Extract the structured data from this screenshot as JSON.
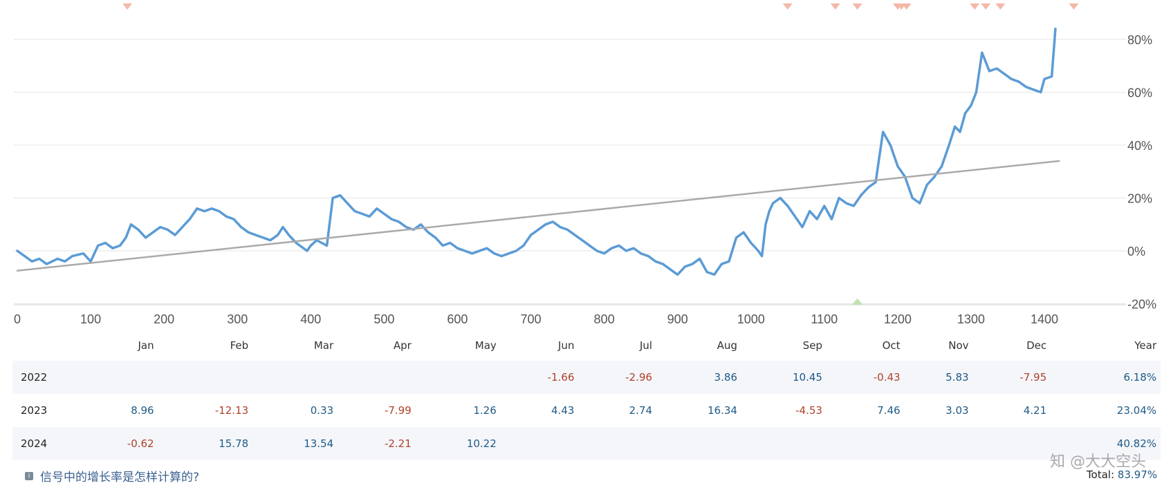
{
  "chart_data": {
    "type": "line",
    "x_ticks": [
      "0",
      "100",
      "200",
      "300",
      "400",
      "500",
      "600",
      "700",
      "800",
      "900",
      "1000",
      "1100",
      "1200",
      "1300",
      "1400"
    ],
    "y_ticks": [
      "80%",
      "60%",
      "40%",
      "20%",
      "0%",
      "-20%"
    ],
    "xlim": [
      0,
      1430
    ],
    "ylim": [
      -20,
      90
    ],
    "series": [
      {
        "color": "#5b9bd5",
        "points": [
          [
            0,
            0
          ],
          [
            10,
            -2
          ],
          [
            20,
            -4
          ],
          [
            30,
            -3
          ],
          [
            40,
            -5
          ],
          [
            55,
            -3
          ],
          [
            65,
            -4
          ],
          [
            75,
            -2
          ],
          [
            90,
            -1
          ],
          [
            100,
            -4
          ],
          [
            110,
            2
          ],
          [
            120,
            3
          ],
          [
            130,
            1
          ],
          [
            140,
            2
          ],
          [
            148,
            5
          ],
          [
            155,
            10
          ],
          [
            165,
            8
          ],
          [
            175,
            5
          ],
          [
            185,
            7
          ],
          [
            195,
            9
          ],
          [
            205,
            8
          ],
          [
            215,
            6
          ],
          [
            225,
            9
          ],
          [
            235,
            12
          ],
          [
            245,
            16
          ],
          [
            255,
            15
          ],
          [
            265,
            16
          ],
          [
            275,
            15
          ],
          [
            285,
            13
          ],
          [
            295,
            12
          ],
          [
            305,
            9
          ],
          [
            315,
            7
          ],
          [
            325,
            6
          ],
          [
            335,
            5
          ],
          [
            345,
            4
          ],
          [
            355,
            6
          ],
          [
            362,
            9
          ],
          [
            370,
            6
          ],
          [
            380,
            3
          ],
          [
            390,
            1
          ],
          [
            395,
            0
          ],
          [
            400,
            2
          ],
          [
            408,
            4
          ],
          [
            415,
            3
          ],
          [
            422,
            2
          ],
          [
            430,
            20
          ],
          [
            440,
            21
          ],
          [
            450,
            18
          ],
          [
            460,
            15
          ],
          [
            470,
            14
          ],
          [
            480,
            13
          ],
          [
            490,
            16
          ],
          [
            500,
            14
          ],
          [
            510,
            12
          ],
          [
            520,
            11
          ],
          [
            530,
            9
          ],
          [
            540,
            8
          ],
          [
            550,
            10
          ],
          [
            560,
            7
          ],
          [
            570,
            5
          ],
          [
            580,
            2
          ],
          [
            590,
            3
          ],
          [
            600,
            1
          ],
          [
            610,
            0
          ],
          [
            620,
            -1
          ],
          [
            630,
            0
          ],
          [
            640,
            1
          ],
          [
            650,
            -1
          ],
          [
            660,
            -2
          ],
          [
            670,
            -1
          ],
          [
            680,
            0
          ],
          [
            690,
            2
          ],
          [
            700,
            6
          ],
          [
            710,
            8
          ],
          [
            720,
            10
          ],
          [
            730,
            11
          ],
          [
            740,
            9
          ],
          [
            750,
            8
          ],
          [
            760,
            6
          ],
          [
            770,
            4
          ],
          [
            780,
            2
          ],
          [
            790,
            0
          ],
          [
            800,
            -1
          ],
          [
            810,
            1
          ],
          [
            820,
            2
          ],
          [
            830,
            0
          ],
          [
            840,
            1
          ],
          [
            850,
            -1
          ],
          [
            860,
            -2
          ],
          [
            870,
            -4
          ],
          [
            880,
            -5
          ],
          [
            890,
            -7
          ],
          [
            900,
            -9
          ],
          [
            910,
            -6
          ],
          [
            920,
            -5
          ],
          [
            930,
            -3
          ],
          [
            940,
            -8
          ],
          [
            950,
            -9
          ],
          [
            960,
            -5
          ],
          [
            970,
            -4
          ],
          [
            980,
            5
          ],
          [
            990,
            7
          ],
          [
            1000,
            3
          ],
          [
            1010,
            0
          ],
          [
            1015,
            -2
          ],
          [
            1020,
            10
          ],
          [
            1025,
            15
          ],
          [
            1030,
            18
          ],
          [
            1040,
            20
          ],
          [
            1050,
            17
          ],
          [
            1060,
            13
          ],
          [
            1070,
            9
          ],
          [
            1080,
            15
          ],
          [
            1090,
            12
          ],
          [
            1100,
            17
          ],
          [
            1110,
            12
          ],
          [
            1120,
            20
          ],
          [
            1130,
            18
          ],
          [
            1140,
            17
          ],
          [
            1150,
            21
          ],
          [
            1160,
            24
          ],
          [
            1170,
            26
          ],
          [
            1180,
            45
          ],
          [
            1190,
            40
          ],
          [
            1200,
            32
          ],
          [
            1210,
            28
          ],
          [
            1220,
            20
          ],
          [
            1230,
            18
          ],
          [
            1240,
            25
          ],
          [
            1250,
            28
          ],
          [
            1260,
            32
          ],
          [
            1270,
            40
          ],
          [
            1278,
            47
          ],
          [
            1285,
            45
          ],
          [
            1292,
            52
          ],
          [
            1300,
            55
          ],
          [
            1307,
            60
          ],
          [
            1315,
            75
          ],
          [
            1325,
            68
          ],
          [
            1335,
            69
          ],
          [
            1345,
            67
          ],
          [
            1355,
            65
          ],
          [
            1365,
            64
          ],
          [
            1375,
            62
          ],
          [
            1385,
            61
          ],
          [
            1395,
            60
          ],
          [
            1400,
            65
          ],
          [
            1410,
            66
          ],
          [
            1415,
            84
          ]
        ]
      },
      {
        "color": "#aaaaaa",
        "points": [
          [
            0,
            -7.5
          ],
          [
            1420,
            34
          ]
        ]
      }
    ],
    "markers_top": [
      150,
      1050,
      1115,
      1145,
      1200,
      1205,
      1212,
      1305,
      1320,
      1340,
      1440
    ],
    "markers_bottom": [
      1145
    ]
  },
  "table": {
    "headers": [
      "Jan",
      "Feb",
      "Mar",
      "Apr",
      "May",
      "Jun",
      "Jul",
      "Aug",
      "Sep",
      "Oct",
      "Nov",
      "Dec",
      "Year"
    ],
    "rows": [
      {
        "year": "2022",
        "cells": [
          {
            "v": "",
            "s": ""
          },
          {
            "v": "",
            "s": ""
          },
          {
            "v": "",
            "s": ""
          },
          {
            "v": "",
            "s": ""
          },
          {
            "v": "",
            "s": ""
          },
          {
            "v": "-1.66",
            "s": "neg"
          },
          {
            "v": "-2.96",
            "s": "neg"
          },
          {
            "v": "3.86",
            "s": "pos"
          },
          {
            "v": "10.45",
            "s": "pos"
          },
          {
            "v": "-0.43",
            "s": "neg"
          },
          {
            "v": "5.83",
            "s": "pos"
          },
          {
            "v": "-7.95",
            "s": "neg"
          },
          {
            "v": "6.18%",
            "s": "pos"
          }
        ]
      },
      {
        "year": "2023",
        "cells": [
          {
            "v": "8.96",
            "s": "pos"
          },
          {
            "v": "-12.13",
            "s": "neg"
          },
          {
            "v": "0.33",
            "s": "pos"
          },
          {
            "v": "-7.99",
            "s": "neg"
          },
          {
            "v": "1.26",
            "s": "pos"
          },
          {
            "v": "4.43",
            "s": "pos"
          },
          {
            "v": "2.74",
            "s": "pos"
          },
          {
            "v": "16.34",
            "s": "pos"
          },
          {
            "v": "-4.53",
            "s": "neg"
          },
          {
            "v": "7.46",
            "s": "pos"
          },
          {
            "v": "3.03",
            "s": "pos"
          },
          {
            "v": "4.21",
            "s": "pos"
          },
          {
            "v": "23.04%",
            "s": "pos"
          }
        ]
      },
      {
        "year": "2024",
        "cells": [
          {
            "v": "-0.62",
            "s": "neg"
          },
          {
            "v": "15.78",
            "s": "pos"
          },
          {
            "v": "13.54",
            "s": "pos"
          },
          {
            "v": "-2.21",
            "s": "neg"
          },
          {
            "v": "10.22",
            "s": "pos"
          },
          {
            "v": "",
            "s": ""
          },
          {
            "v": "",
            "s": ""
          },
          {
            "v": "",
            "s": ""
          },
          {
            "v": "",
            "s": ""
          },
          {
            "v": "",
            "s": ""
          },
          {
            "v": "",
            "s": ""
          },
          {
            "v": "",
            "s": ""
          },
          {
            "v": "40.82%",
            "s": "pos"
          }
        ]
      }
    ]
  },
  "footer": {
    "link_text": "信号中的增长率是怎样计算的?",
    "total_label": "Total:",
    "total_value": "83.97%",
    "watermark": "知 @大大空头"
  }
}
